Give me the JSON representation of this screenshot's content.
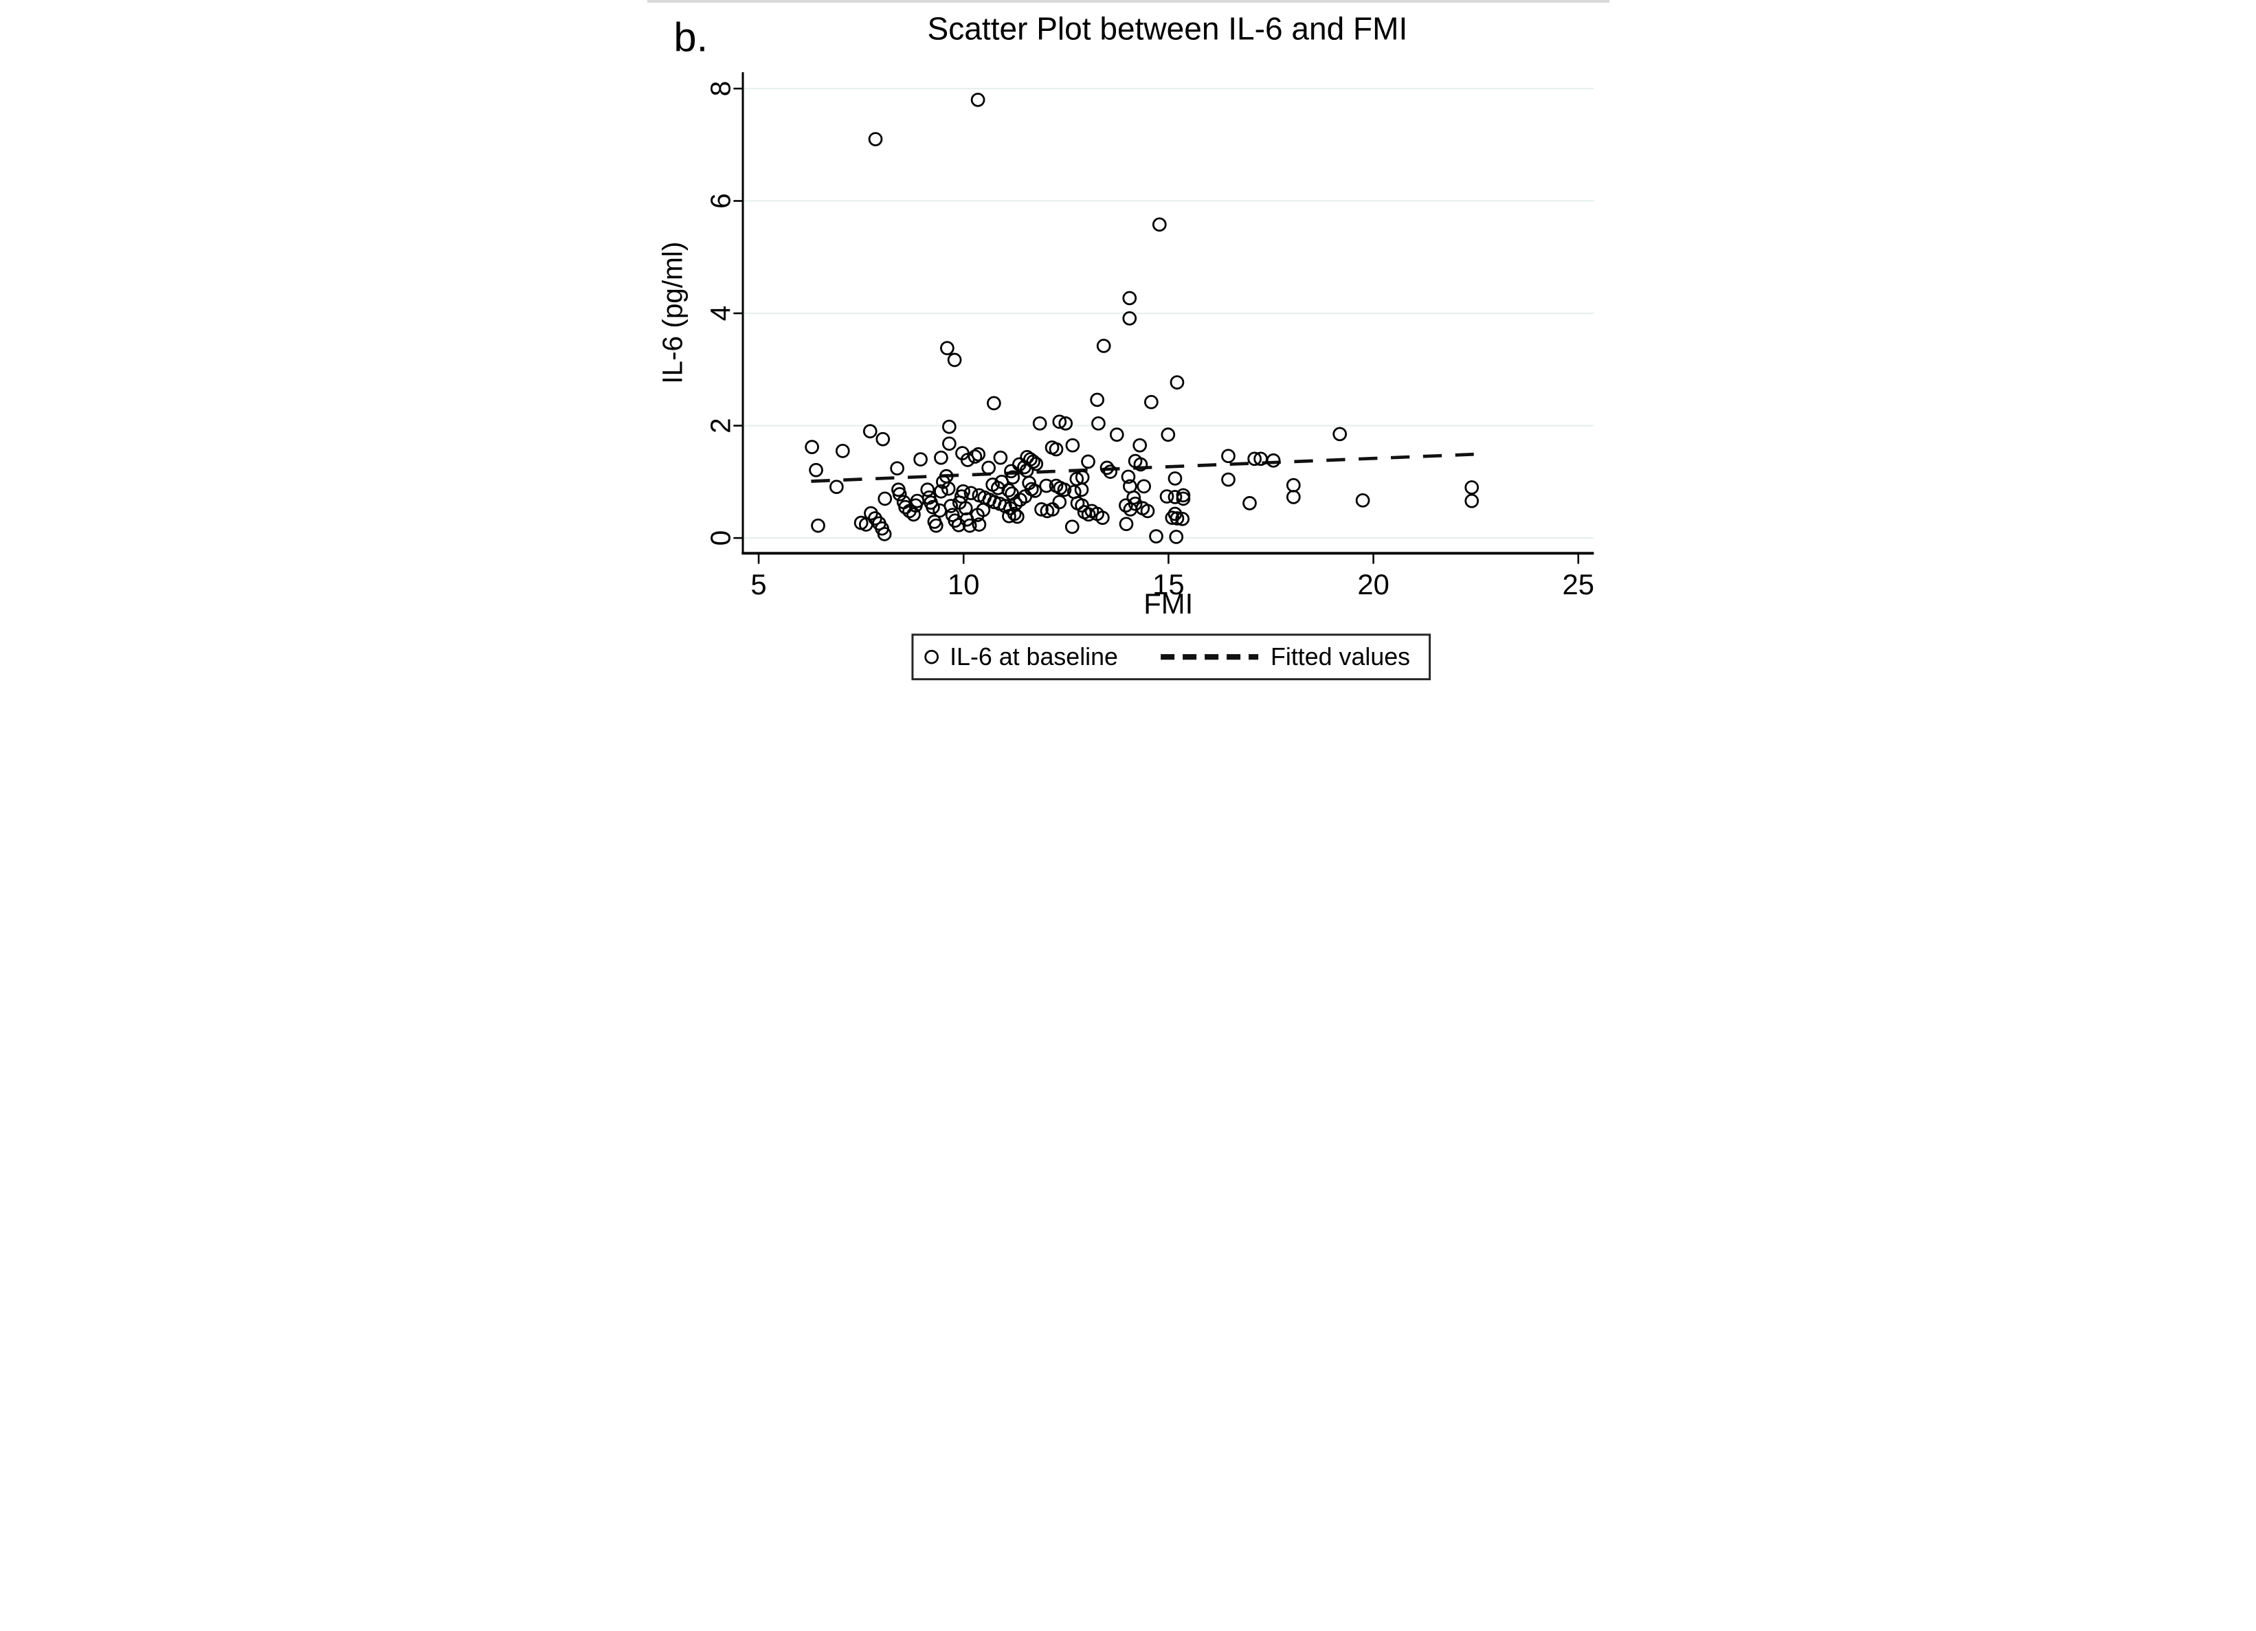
{
  "figure_label": "b.",
  "title": "Scatter Plot between IL-6 and FMI",
  "x_axis": {
    "label": "FMI",
    "ticks": [
      "5",
      "10",
      "15",
      "20",
      "25"
    ]
  },
  "y_axis": {
    "label": "IL-6 (pg/ml)",
    "ticks": [
      "0",
      "2",
      "4",
      "6",
      "8"
    ]
  },
  "legend": {
    "marker_label": "IL-6 at baseline",
    "line_label": "Fitted values"
  },
  "colors": {
    "marker": "#000000",
    "axis": "#000000",
    "grid": "#e7efef",
    "fitted_line": "#111111",
    "legend_border": "#262626",
    "background": "#ffffff"
  },
  "chart_data": {
    "type": "scatter",
    "title": "Scatter Plot between IL-6 and FMI",
    "xlabel": "FMI",
    "ylabel": "IL-6 (pg/ml)",
    "xlim": [
      5,
      25
    ],
    "ylim": [
      0,
      8
    ],
    "x_ticks": [
      5,
      10,
      15,
      20,
      25
    ],
    "y_ticks": [
      0,
      2,
      4,
      6,
      8
    ],
    "grid": "horizontal-only, very light",
    "legend_position": "below plot, centered, boxed",
    "series": [
      {
        "name": "IL-6 at baseline",
        "marker": "hollow-circle",
        "points": [
          [
            6.3,
            1.62
          ],
          [
            6.4,
            1.21
          ],
          [
            6.45,
            0.22
          ],
          [
            6.9,
            0.91
          ],
          [
            7.05,
            1.55
          ],
          [
            7.5,
            0.27
          ],
          [
            7.62,
            0.24
          ],
          [
            7.74,
            0.44
          ],
          [
            7.84,
            0.35
          ],
          [
            7.94,
            0.26
          ],
          [
            8.01,
            0.17
          ],
          [
            8.07,
            0.07
          ],
          [
            8.08,
            0.7
          ],
          [
            7.72,
            1.9
          ],
          [
            8.03,
            1.76
          ],
          [
            7.85,
            7.1
          ],
          [
            8.38,
            1.24
          ],
          [
            8.41,
            0.86
          ],
          [
            8.44,
            0.78
          ],
          [
            8.54,
            0.64
          ],
          [
            8.58,
            0.55
          ],
          [
            8.68,
            0.48
          ],
          [
            8.78,
            0.42
          ],
          [
            8.83,
            0.58
          ],
          [
            8.87,
            0.66
          ],
          [
            8.95,
            1.4
          ],
          [
            9.12,
            0.86
          ],
          [
            9.16,
            0.72
          ],
          [
            9.2,
            0.63
          ],
          [
            9.25,
            0.55
          ],
          [
            9.29,
            0.29
          ],
          [
            9.33,
            0.22
          ],
          [
            9.42,
            0.49
          ],
          [
            9.45,
            0.83
          ],
          [
            9.5,
            1.0
          ],
          [
            9.58,
            1.1
          ],
          [
            9.45,
            1.43
          ],
          [
            9.63,
            0.88
          ],
          [
            9.65,
            1.98
          ],
          [
            9.65,
            1.68
          ],
          [
            9.69,
            0.57
          ],
          [
            9.73,
            0.41
          ],
          [
            9.79,
            0.31
          ],
          [
            9.88,
            0.23
          ],
          [
            9.9,
            0.63
          ],
          [
            9.95,
            0.74
          ],
          [
            9.99,
            0.83
          ],
          [
            10.05,
            0.53
          ],
          [
            9.97,
            1.51
          ],
          [
            10.36,
            1.49
          ],
          [
            9.6,
            3.38
          ],
          [
            9.78,
            3.17
          ],
          [
            10.35,
            7.8
          ],
          [
            10.74,
            2.4
          ],
          [
            10.1,
            1.39
          ],
          [
            10.28,
            1.45
          ],
          [
            10.61,
            1.25
          ],
          [
            10.9,
            1.43
          ],
          [
            10.71,
            0.95
          ],
          [
            10.93,
            1.0
          ],
          [
            10.84,
            0.89
          ],
          [
            10.18,
            0.8
          ],
          [
            10.38,
            0.76
          ],
          [
            10.51,
            0.72
          ],
          [
            10.63,
            0.68
          ],
          [
            10.75,
            0.64
          ],
          [
            10.88,
            0.61
          ],
          [
            11.01,
            0.57
          ],
          [
            11.14,
            0.53
          ],
          [
            11.27,
            0.61
          ],
          [
            11.38,
            0.68
          ],
          [
            11.5,
            0.74
          ],
          [
            11.24,
            0.43
          ],
          [
            11.31,
            0.38
          ],
          [
            10.48,
            0.5
          ],
          [
            10.34,
            0.41
          ],
          [
            10.08,
            0.33
          ],
          [
            10.15,
            0.22
          ],
          [
            10.38,
            0.24
          ],
          [
            11.1,
            0.85
          ],
          [
            11.18,
            0.79
          ],
          [
            11.11,
            0.39
          ],
          [
            11.36,
            1.31
          ],
          [
            11.48,
            1.26
          ],
          [
            11.54,
            1.2
          ],
          [
            11.55,
            1.44
          ],
          [
            11.63,
            1.4
          ],
          [
            11.7,
            1.36
          ],
          [
            11.77,
            1.32
          ],
          [
            11.16,
            1.19
          ],
          [
            11.2,
            1.08
          ],
          [
            11.6,
            0.98
          ],
          [
            11.66,
            0.87
          ],
          [
            11.74,
            0.84
          ],
          [
            11.86,
            2.04
          ],
          [
            11.9,
            0.51
          ],
          [
            12.02,
            0.93
          ],
          [
            12.04,
            0.48
          ],
          [
            12.16,
            1.61
          ],
          [
            12.26,
            1.58
          ],
          [
            12.34,
            2.07
          ],
          [
            12.49,
            2.04
          ],
          [
            12.26,
            0.93
          ],
          [
            12.36,
            0.89
          ],
          [
            12.46,
            0.86
          ],
          [
            12.34,
            0.64
          ],
          [
            12.17,
            0.51
          ],
          [
            12.66,
            1.65
          ],
          [
            12.7,
            0.82
          ],
          [
            12.78,
            0.62
          ],
          [
            12.89,
            0.58
          ],
          [
            12.88,
            0.86
          ],
          [
            12.76,
            1.05
          ],
          [
            12.9,
            1.08
          ],
          [
            12.65,
            0.2
          ],
          [
            12.95,
            0.46
          ],
          [
            13.05,
            0.42
          ],
          [
            13.04,
            1.36
          ],
          [
            13.13,
            0.48
          ],
          [
            13.26,
            0.43
          ],
          [
            13.39,
            0.36
          ],
          [
            13.5,
            1.25
          ],
          [
            13.58,
            1.18
          ],
          [
            13.29,
            2.04
          ],
          [
            13.26,
            2.46
          ],
          [
            13.74,
            1.84
          ],
          [
            13.96,
            0.58
          ],
          [
            14.07,
            0.51
          ],
          [
            14.19,
            0.61
          ],
          [
            13.97,
            0.25
          ],
          [
            14.02,
            1.09
          ],
          [
            14.06,
            0.92
          ],
          [
            14.19,
            1.37
          ],
          [
            14.32,
            1.31
          ],
          [
            14.37,
            0.53
          ],
          [
            14.49,
            0.48
          ],
          [
            14.58,
            2.42
          ],
          [
            14.99,
            1.84
          ],
          [
            15.09,
            0.36
          ],
          [
            15.21,
            0.35
          ],
          [
            15.34,
            0.34
          ],
          [
            15.19,
            0.02
          ],
          [
            15.36,
            0.76
          ],
          [
            15.21,
            2.77
          ],
          [
            13.42,
            3.42
          ],
          [
            14.05,
            4.27
          ],
          [
            14.05,
            3.91
          ],
          [
            14.78,
            5.58
          ],
          [
            14.3,
            1.65
          ],
          [
            14.4,
            0.92
          ],
          [
            14.15,
            0.72
          ],
          [
            14.96,
            0.74
          ],
          [
            15.16,
            0.73
          ],
          [
            15.36,
            0.7
          ],
          [
            15.16,
            1.06
          ],
          [
            15.16,
            0.43
          ],
          [
            16.46,
            1.46
          ],
          [
            16.46,
            1.04
          ],
          [
            17.1,
            1.41
          ],
          [
            17.25,
            1.41
          ],
          [
            17.56,
            1.38
          ],
          [
            16.98,
            0.62
          ],
          [
            18.05,
            0.94
          ],
          [
            18.05,
            0.73
          ],
          [
            19.18,
            1.85
          ],
          [
            19.74,
            0.67
          ],
          [
            22.4,
            0.9
          ],
          [
            22.4,
            0.66
          ],
          [
            14.7,
            0.03
          ]
        ]
      }
    ],
    "fitted_line": {
      "name": "Fitted values",
      "style": "dashed",
      "x_start": 6.28,
      "y_start": 1.01,
      "x_end": 22.45,
      "y_end": 1.49
    }
  }
}
